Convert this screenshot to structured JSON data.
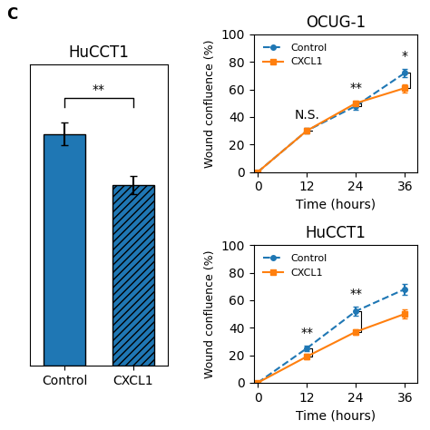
{
  "panel_label": "C",
  "chart_data": [
    {
      "type": "bar",
      "title": "HuCCT1",
      "categories": [
        "Control",
        "CXCL1"
      ],
      "values": [
        1.0,
        0.78
      ],
      "errors": [
        0.05,
        0.04
      ],
      "ylim": [
        0,
        1.3
      ],
      "yticks": [],
      "tick_labels": "x",
      "annotations": [
        {
          "from": "Control",
          "to": "CXCL1",
          "text": "**"
        }
      ]
    },
    {
      "type": "line",
      "title": "OCUG-1",
      "xlabel": "Time (hours)",
      "ylabel": "Wound confluence (%)",
      "x": [
        0,
        12,
        24,
        36
      ],
      "xlim": [
        -1,
        39
      ],
      "ylim": [
        0,
        100
      ],
      "xticks": [
        0,
        12,
        24,
        36
      ],
      "yticks": [
        0,
        20,
        40,
        60,
        80,
        100
      ],
      "legend": "upper left",
      "series": [
        {
          "name": "Control",
          "marker": "o",
          "line_style": "dashed",
          "values": [
            0,
            30,
            48,
            72
          ],
          "errors": [
            0,
            2,
            3,
            3
          ]
        },
        {
          "name": "CXCL1",
          "marker": "s",
          "line_style": "solid",
          "values": [
            0,
            30,
            50,
            61
          ],
          "errors": [
            0,
            2,
            2,
            3
          ]
        }
      ],
      "annotations": [
        {
          "x": 12,
          "text": "N.S."
        },
        {
          "x": 24,
          "text": "**"
        },
        {
          "x": 36,
          "text": "*"
        }
      ]
    },
    {
      "type": "line",
      "title": "HuCCT1",
      "xlabel": "Time (hours)",
      "ylabel": "Wound confluence (%)",
      "x": [
        0,
        12,
        24,
        36
      ],
      "xlim": [
        -1,
        39
      ],
      "ylim": [
        0,
        100
      ],
      "xticks": [
        0,
        12,
        24,
        36
      ],
      "yticks": [
        0,
        20,
        40,
        60,
        80,
        100
      ],
      "legend": "upper left",
      "series": [
        {
          "name": "Control",
          "marker": "o",
          "line_style": "dashed",
          "values": [
            0,
            25,
            52,
            68
          ],
          "errors": [
            0,
            2,
            3,
            4
          ]
        },
        {
          "name": "CXCL1",
          "marker": "s",
          "line_style": "solid",
          "values": [
            0,
            19,
            37,
            50
          ],
          "errors": [
            0,
            2,
            2,
            3
          ]
        }
      ],
      "annotations": [
        {
          "x": 12,
          "text": "**"
        },
        {
          "x": 24,
          "text": "**"
        }
      ]
    }
  ]
}
